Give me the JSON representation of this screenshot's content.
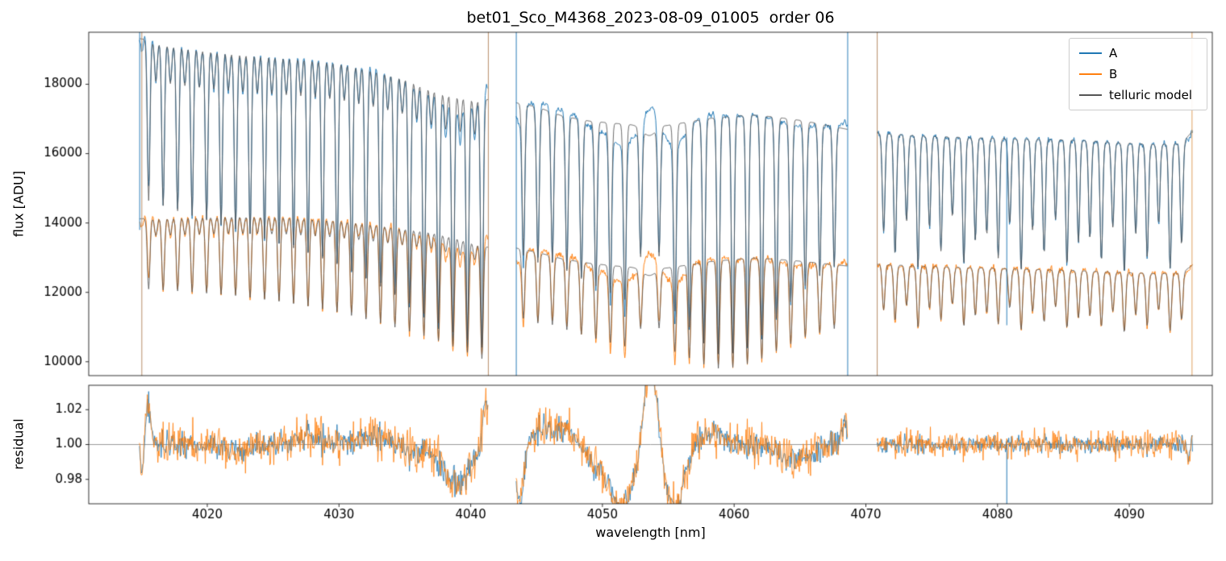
{
  "chart_data": {
    "type": "line",
    "title": "bet01_Sco_M4368_2023-08-09_01005  order 06",
    "xlabel": "wavelength [nm]",
    "xlim": [
      4011.0,
      4096.3
    ],
    "xticks": [
      4020,
      4030,
      4040,
      4050,
      4060,
      4070,
      4080,
      4090
    ],
    "panels": [
      {
        "name": "flux",
        "ylabel": "flux [ADU]",
        "ylim": [
          9600,
          19500
        ],
        "yticks": [
          10000,
          12000,
          14000,
          16000,
          18000
        ]
      },
      {
        "name": "residual",
        "ylabel": "residual",
        "ylim": [
          0.966,
          1.034
        ],
        "yticks": [
          0.98,
          1.0,
          1.02
        ]
      }
    ],
    "legend": [
      {
        "label": "A",
        "color": "#1f77b4"
      },
      {
        "label": "B",
        "color": "#ff7f0e"
      },
      {
        "label": "telluric model",
        "color": "#555555"
      }
    ],
    "colors": {
      "A": "#1f77b4",
      "B": "#ff7f0e",
      "model": "#555555"
    },
    "segments": [
      [
        4014.85,
        4041.3
      ],
      [
        4043.45,
        4068.6
      ],
      [
        4070.85,
        4094.8
      ]
    ],
    "continuum_A": [
      [
        4014.8,
        19320
      ],
      [
        4018,
        19120
      ],
      [
        4021,
        18980
      ],
      [
        4024,
        18880
      ],
      [
        4027,
        18800
      ],
      [
        4030,
        18680
      ],
      [
        4033,
        18430
      ],
      [
        4035,
        18230
      ],
      [
        4036.5,
        17980
      ],
      [
        4038,
        17780
      ],
      [
        4040,
        17640
      ],
      [
        4041.3,
        17560
      ],
      [
        4043.4,
        17470
      ],
      [
        4045,
        17350
      ],
      [
        4047,
        17080
      ],
      [
        4049,
        16940
      ],
      [
        4051,
        16870
      ],
      [
        4052.5,
        16830
      ],
      [
        4055,
        16820
      ],
      [
        4056.5,
        16910
      ],
      [
        4058,
        17010
      ],
      [
        4060,
        17080
      ],
      [
        4061.5,
        17110
      ],
      [
        4063,
        17060
      ],
      [
        4065,
        16960
      ],
      [
        4066.5,
        16860
      ],
      [
        4068.6,
        16700
      ],
      [
        4070.8,
        16600
      ],
      [
        4074,
        16510
      ],
      [
        4078,
        16460
      ],
      [
        4082,
        16420
      ],
      [
        4086,
        16390
      ],
      [
        4089,
        16320
      ],
      [
        4092,
        16260
      ],
      [
        4094,
        16300
      ],
      [
        4094.8,
        16650
      ]
    ],
    "continuum_B": [
      [
        4014.8,
        14120
      ],
      [
        4018,
        14170
      ],
      [
        4022,
        14210
      ],
      [
        4026,
        14190
      ],
      [
        4030,
        14090
      ],
      [
        4033,
        13960
      ],
      [
        4035,
        13860
      ],
      [
        4037,
        13760
      ],
      [
        4039,
        13580
      ],
      [
        4040.5,
        13400
      ],
      [
        4041.3,
        13300
      ],
      [
        4043.4,
        13280
      ],
      [
        4045,
        13160
      ],
      [
        4047,
        12960
      ],
      [
        4049,
        12840
      ],
      [
        4051,
        12760
      ],
      [
        4052.5,
        12720
      ],
      [
        4055,
        12710
      ],
      [
        4056.5,
        12790
      ],
      [
        4058,
        12880
      ],
      [
        4060,
        12950
      ],
      [
        4061.5,
        12990
      ],
      [
        4063,
        12960
      ],
      [
        4065,
        12900
      ],
      [
        4066.5,
        12840
      ],
      [
        4068.6,
        12760
      ],
      [
        4070.8,
        12810
      ],
      [
        4074,
        12760
      ],
      [
        4078,
        12710
      ],
      [
        4082,
        12670
      ],
      [
        4086,
        12630
      ],
      [
        4089,
        12580
      ],
      [
        4092,
        12540
      ],
      [
        4094,
        12560
      ],
      [
        4094.8,
        12790
      ]
    ],
    "telluric_lines": [
      [
        4015.55,
        0.24
      ],
      [
        4016.65,
        0.245
      ],
      [
        4017.75,
        0.25
      ],
      [
        4018.85,
        0.255
      ],
      [
        4019.95,
        0.26
      ],
      [
        4021.05,
        0.265
      ],
      [
        4022.15,
        0.27
      ],
      [
        4023.25,
        0.276
      ],
      [
        4024.35,
        0.282
      ],
      [
        4025.45,
        0.288
      ],
      [
        4026.55,
        0.294
      ],
      [
        4027.65,
        0.3
      ],
      [
        4028.75,
        0.307
      ],
      [
        4029.85,
        0.314
      ],
      [
        4030.95,
        0.322
      ],
      [
        4032.05,
        0.33
      ],
      [
        4033.15,
        0.339
      ],
      [
        4034.25,
        0.348
      ],
      [
        4035.35,
        0.357
      ],
      [
        4036.45,
        0.367
      ],
      [
        4037.55,
        0.377
      ],
      [
        4038.65,
        0.388
      ],
      [
        4039.75,
        0.398
      ],
      [
        4040.85,
        0.408
      ],
      [
        4044.0,
        0.25
      ],
      [
        4045.1,
        0.258
      ],
      [
        4046.2,
        0.252
      ],
      [
        4047.3,
        0.26
      ],
      [
        4048.4,
        0.27
      ],
      [
        4049.5,
        0.28
      ],
      [
        4050.6,
        0.29
      ],
      [
        4051.7,
        0.3
      ],
      [
        4052.9,
        0.22
      ],
      [
        4054.3,
        0.22
      ],
      [
        4055.5,
        0.32
      ],
      [
        4056.6,
        0.35
      ],
      [
        4057.7,
        0.38
      ],
      [
        4058.8,
        0.4
      ],
      [
        4059.9,
        0.4
      ],
      [
        4061.0,
        0.39
      ],
      [
        4062.1,
        0.37
      ],
      [
        4063.2,
        0.34
      ],
      [
        4064.3,
        0.31
      ],
      [
        4065.4,
        0.28
      ],
      [
        4066.5,
        0.26
      ],
      [
        4067.6,
        0.24
      ],
      [
        4071.35,
        0.17
      ],
      [
        4072.22,
        0.21
      ],
      [
        4073.09,
        0.15
      ],
      [
        4073.96,
        0.23
      ],
      [
        4074.83,
        0.16
      ],
      [
        4075.7,
        0.2
      ],
      [
        4076.57,
        0.14
      ],
      [
        4077.44,
        0.22
      ],
      [
        4078.31,
        0.18
      ],
      [
        4079.18,
        0.17
      ],
      [
        4080.05,
        0.21
      ],
      [
        4080.92,
        0.15
      ],
      [
        4081.79,
        0.23
      ],
      [
        4082.66,
        0.16
      ],
      [
        4083.53,
        0.2
      ],
      [
        4084.4,
        0.14
      ],
      [
        4085.27,
        0.22
      ],
      [
        4086.14,
        0.18
      ],
      [
        4087.01,
        0.17
      ],
      [
        4087.88,
        0.21
      ],
      [
        4088.75,
        0.15
      ],
      [
        4089.62,
        0.23
      ],
      [
        4090.49,
        0.16
      ],
      [
        4091.36,
        0.2
      ],
      [
        4092.23,
        0.14
      ],
      [
        4093.1,
        0.22
      ],
      [
        4093.97,
        0.18
      ]
    ],
    "minor_lines": {
      "start": 4015.55,
      "offset": 0.55,
      "spacing": 1.1,
      "depth": 0.06,
      "end": 4040.3
    },
    "line_sigma_nm": 0.1,
    "broad_feature": {
      "center": 4053.55,
      "sigma": 0.5,
      "depth": 0.018
    },
    "depth_ratio_B": 0.6,
    "residual_features": [
      [
        4015.05,
        0.1,
        -0.018
      ],
      [
        4015.5,
        0.18,
        0.024
      ],
      [
        4022.5,
        0.8,
        -0.004
      ],
      [
        4028.0,
        1.2,
        0.004
      ],
      [
        4032.5,
        1.0,
        0.005
      ],
      [
        4036.0,
        0.7,
        -0.005
      ],
      [
        4038.9,
        1.0,
        -0.024
      ],
      [
        4041.15,
        0.25,
        0.026
      ],
      [
        4043.7,
        0.3,
        -0.032
      ],
      [
        4045.3,
        0.5,
        0.008
      ],
      [
        4047.0,
        0.9,
        0.009
      ],
      [
        4049.2,
        0.5,
        -0.008
      ],
      [
        4051.4,
        1.0,
        -0.036
      ],
      [
        4053.62,
        0.48,
        0.052
      ],
      [
        4055.5,
        0.7,
        -0.037
      ],
      [
        4058.2,
        0.9,
        0.007
      ],
      [
        4064.8,
        1.2,
        -0.009
      ],
      [
        4068.35,
        0.2,
        0.012
      ],
      [
        4094.5,
        0.12,
        -0.008
      ]
    ],
    "artifacts_top": [
      [
        4014.87,
        "#1f77b4",
        19500,
        13800
      ],
      [
        4015.03,
        "#b3875f",
        19500,
        9600
      ],
      [
        4041.34,
        "#b3875f",
        19500,
        9600
      ],
      [
        4043.46,
        "#1f77b4",
        19500,
        9600
      ],
      [
        4068.62,
        "#1f77b4",
        19500,
        9600
      ],
      [
        4070.86,
        "#b3875f",
        19500,
        9600
      ],
      [
        4080.7,
        "#1f77b4",
        16460,
        11050
      ],
      [
        4094.76,
        "#dd9a55",
        19500,
        9600
      ]
    ],
    "artifacts_bottom": [
      [
        4080.7,
        "#1f77b4",
        1.0,
        0.966
      ]
    ],
    "noise": {
      "flux_A": 40,
      "flux_B": 48,
      "res_A": 0.0032,
      "res_B": 0.005,
      "core_boost": 1.3,
      "seg3_res_scale": 0.7
    }
  }
}
